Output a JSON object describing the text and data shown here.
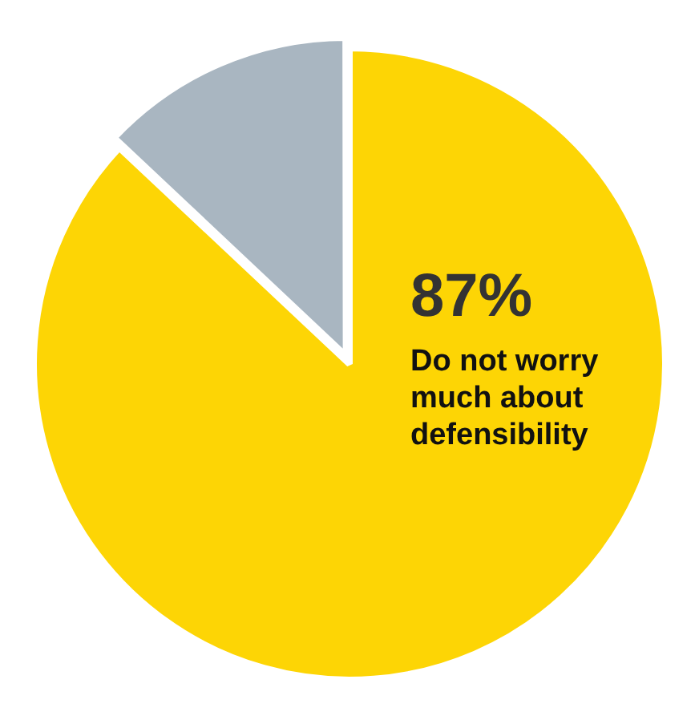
{
  "chart_data": {
    "type": "pie",
    "categories": [
      "Do not worry much about defensibility",
      null
    ],
    "values": [
      87,
      13
    ],
    "colors": [
      "#fdd505",
      "#a9b6c1"
    ],
    "value_labels": [
      "87%",
      null
    ],
    "legend": false
  }
}
